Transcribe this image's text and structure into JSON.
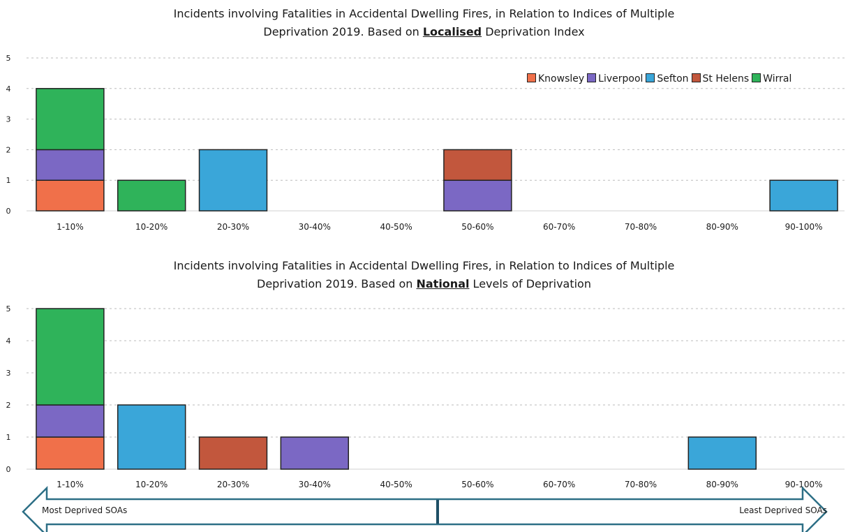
{
  "colors": {
    "Knowsley": "#f0704a",
    "Liverpool": "#7b68c4",
    "Sefton": "#3aa6d9",
    "St Helens": "#c2573d",
    "Wirral": "#2fb35a"
  },
  "legend": [
    "Knowsley",
    "Liverpool",
    "Sefton",
    "St Helens",
    "Wirral"
  ],
  "arrow": {
    "left_label": "Most Deprived SOAs",
    "right_label": "Least Deprived SOAs"
  },
  "titles": [
    {
      "line1": "Incidents involving Fatalities in Accidental Dwelling Fires, in Relation to Indices of Multiple",
      "pre": "Deprivation 2019.  Based on ",
      "emph": "Localised",
      "post": " Deprivation Index"
    },
    {
      "line1": "Incidents involving Fatalities in Accidental Dwelling Fires, in Relation to Indices of Multiple",
      "pre": "Deprivation 2019.  Based on ",
      "emph": "National",
      "post": " Levels of Deprivation"
    }
  ],
  "chart_data": [
    {
      "type": "bar",
      "stacked": true,
      "title": "Incidents involving Fatalities in Accidental Dwelling Fires, in Relation to Indices of Multiple Deprivation 2019.  Based on Localised Deprivation Index",
      "categories": [
        "1-10%",
        "10-20%",
        "20-30%",
        "30-40%",
        "40-50%",
        "50-60%",
        "60-70%",
        "70-80%",
        "80-90%",
        "90-100%"
      ],
      "series": [
        {
          "name": "Knowsley",
          "values": [
            1,
            0,
            0,
            0,
            0,
            0,
            0,
            0,
            0,
            0
          ]
        },
        {
          "name": "Liverpool",
          "values": [
            1,
            0,
            0,
            0,
            0,
            1,
            0,
            0,
            0,
            0
          ]
        },
        {
          "name": "Sefton",
          "values": [
            0,
            0,
            2,
            0,
            0,
            0,
            0,
            0,
            0,
            1
          ]
        },
        {
          "name": "St Helens",
          "values": [
            0,
            0,
            0,
            0,
            0,
            1,
            0,
            0,
            0,
            0
          ]
        },
        {
          "name": "Wirral",
          "values": [
            2,
            1,
            0,
            0,
            0,
            0,
            0,
            0,
            0,
            0
          ]
        }
      ],
      "ylim": [
        0,
        5
      ],
      "yticks": [
        0,
        1,
        2,
        3,
        4,
        5
      ],
      "grid": true,
      "legend": "top-right"
    },
    {
      "type": "bar",
      "stacked": true,
      "title": "Incidents involving Fatalities in Accidental Dwelling Fires, in Relation to Indices of Multiple Deprivation 2019.  Based on National Levels of Deprivation",
      "categories": [
        "1-10%",
        "10-20%",
        "20-30%",
        "30-40%",
        "40-50%",
        "50-60%",
        "60-70%",
        "70-80%",
        "80-90%",
        "90-100%"
      ],
      "series": [
        {
          "name": "Knowsley",
          "values": [
            1,
            0,
            0,
            0,
            0,
            0,
            0,
            0,
            0,
            0
          ]
        },
        {
          "name": "Liverpool",
          "values": [
            1,
            0,
            0,
            1,
            0,
            0,
            0,
            0,
            0,
            0
          ]
        },
        {
          "name": "Sefton",
          "values": [
            0,
            2,
            0,
            0,
            0,
            0,
            0,
            0,
            1,
            0
          ]
        },
        {
          "name": "St Helens",
          "values": [
            0,
            0,
            1,
            0,
            0,
            0,
            0,
            0,
            0,
            0
          ]
        },
        {
          "name": "Wirral",
          "values": [
            3,
            0,
            0,
            0,
            0,
            0,
            0,
            0,
            0,
            0
          ]
        }
      ],
      "ylim": [
        0,
        5
      ],
      "yticks": [
        0,
        1,
        2,
        3,
        4,
        5
      ],
      "grid": true
    }
  ]
}
